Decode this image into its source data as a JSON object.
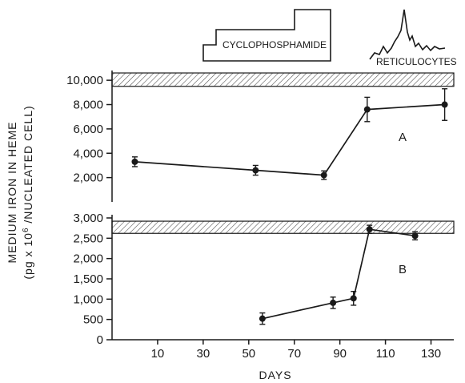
{
  "chart_data": [
    {
      "type": "line",
      "panel_label": "A",
      "ylim": [
        0,
        10800
      ],
      "y_ticks": [
        "2,000",
        "4,000",
        "6,000",
        "8,000",
        "10,000"
      ],
      "y_tick_values": [
        2000,
        4000,
        6000,
        8000,
        10000
      ],
      "reference_band": [
        9500,
        10600
      ],
      "series": [
        {
          "x": [
            0,
            53,
            83,
            102,
            136
          ],
          "y": [
            3300,
            2600,
            2200,
            7600,
            8000
          ],
          "err": [
            400,
            400,
            350,
            1000,
            1300
          ]
        }
      ]
    },
    {
      "type": "line",
      "panel_label": "B",
      "ylim": [
        0,
        3000
      ],
      "y_ticks": [
        "0",
        "500",
        "1,000",
        "1,500",
        "2,000",
        "2,500",
        "3,000"
      ],
      "y_tick_values": [
        0,
        500,
        1000,
        1500,
        2000,
        2500,
        3000
      ],
      "reference_band": [
        2620,
        2920
      ],
      "series": [
        {
          "x": [
            56,
            87,
            96,
            103,
            123
          ],
          "y": [
            520,
            910,
            1020,
            2720,
            2560
          ],
          "err": [
            140,
            140,
            170,
            100,
            100
          ]
        }
      ]
    }
  ],
  "x_axis": {
    "label": "DAYS",
    "ticks": [
      "10",
      "30",
      "50",
      "70",
      "90",
      "110",
      "130"
    ],
    "tick_values": [
      10,
      30,
      50,
      70,
      90,
      110,
      130
    ],
    "range": [
      -10,
      140
    ]
  },
  "y_axis_label_line1": "MEDIUM IRON IN HEME",
  "y_axis_label_line2": "(pg x 10",
  "y_axis_label_sup": "6",
  "y_axis_label_line2_end": " /NUCLEATED CELL)",
  "legend": {
    "cyclophosphamide": "CYCLOPHOSPHAMIDE",
    "reticulocytes": "RETICULOCYTES"
  }
}
